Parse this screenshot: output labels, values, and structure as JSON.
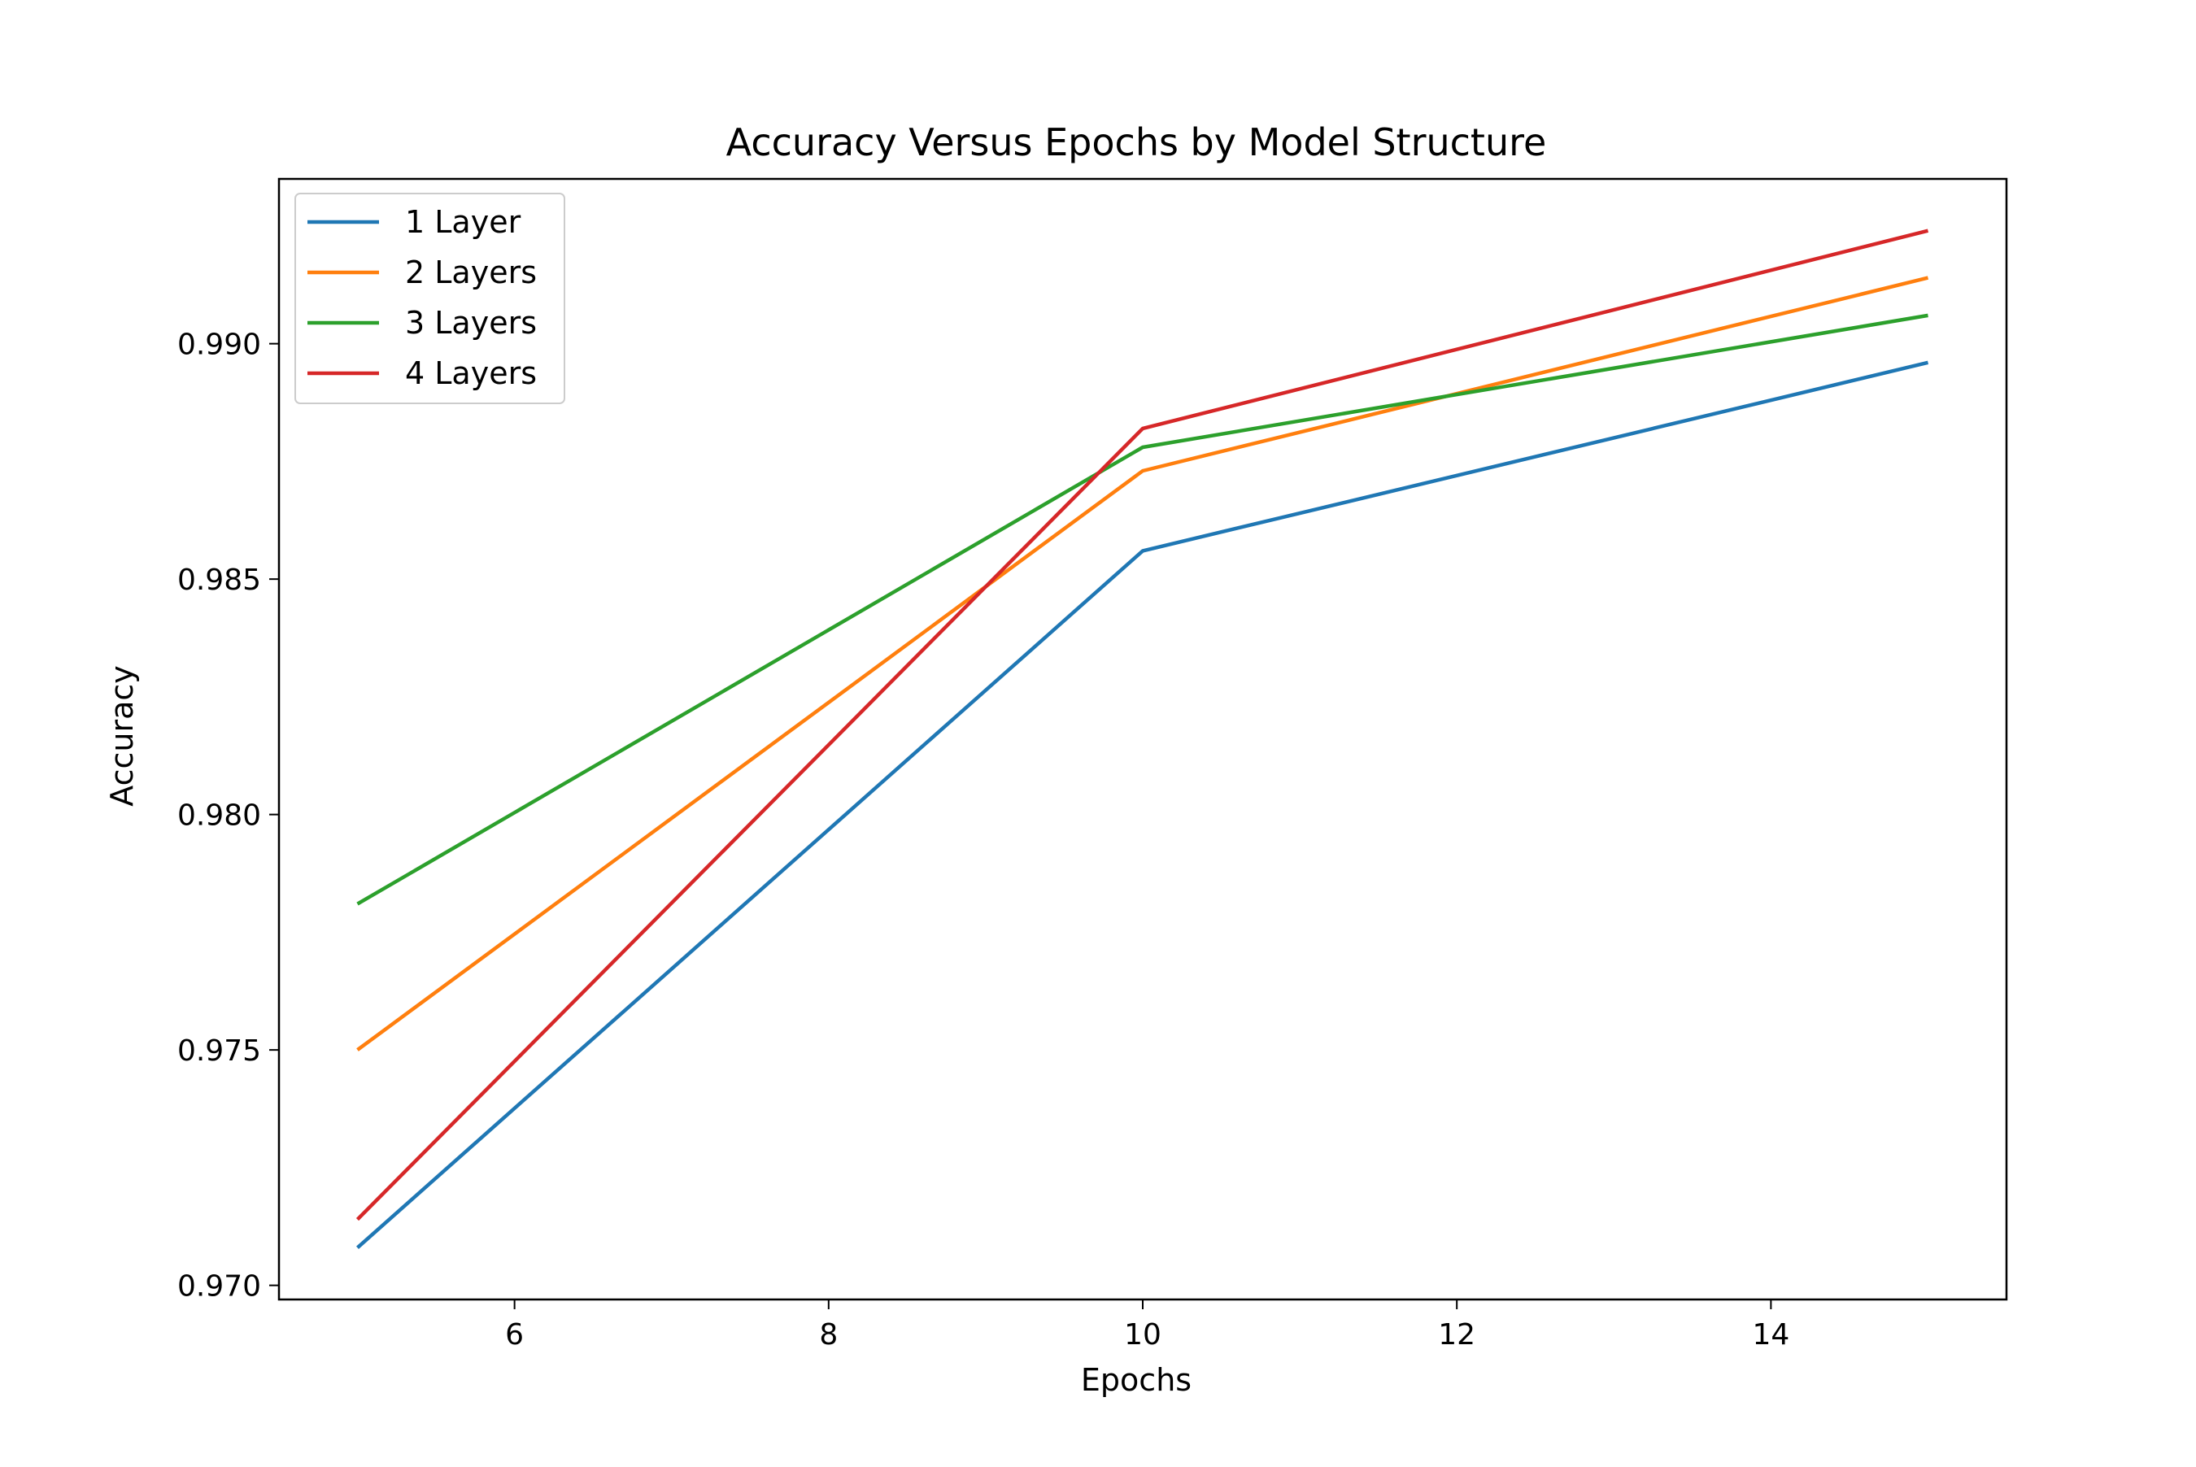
{
  "chart_data": {
    "type": "line",
    "title": "Accuracy Versus Epochs by Model Structure",
    "xlabel": "Epochs",
    "ylabel": "Accuracy",
    "x": [
      5,
      10,
      15
    ],
    "xlim": [
      4.5,
      15.5
    ],
    "ylim": [
      0.9697,
      0.9935
    ],
    "xticks": [
      6,
      8,
      10,
      12,
      14
    ],
    "yticks": [
      0.97,
      0.975,
      0.98,
      0.985,
      0.99
    ],
    "xtick_labels": [
      "6",
      "8",
      "10",
      "12",
      "14"
    ],
    "ytick_labels": [
      "0.970",
      "0.975",
      "0.980",
      "0.985",
      "0.990"
    ],
    "grid": false,
    "legend_position": "top-left",
    "series": [
      {
        "name": "1 Layer",
        "color": "#1f77b4",
        "values": [
          0.9708,
          0.9856,
          0.9896
        ]
      },
      {
        "name": "2 Layers",
        "color": "#ff7f0e",
        "values": [
          0.975,
          0.9873,
          0.9914
        ]
      },
      {
        "name": "3 Layers",
        "color": "#2ca02c",
        "values": [
          0.9781,
          0.9878,
          0.9906
        ]
      },
      {
        "name": "4 Layers",
        "color": "#d62728",
        "values": [
          0.9714,
          0.9882,
          0.9924
        ]
      }
    ]
  }
}
